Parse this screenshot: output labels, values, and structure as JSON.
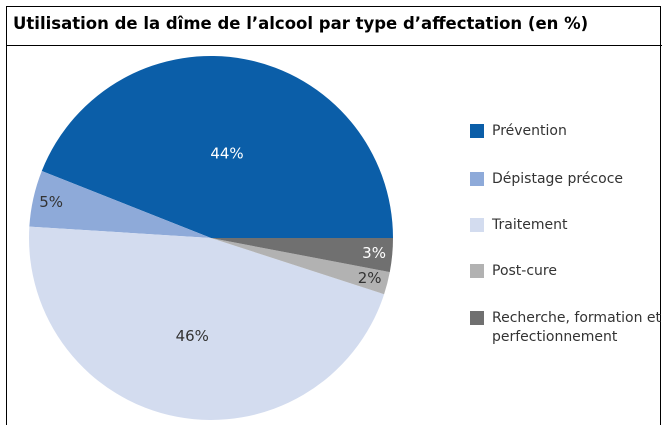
{
  "chart_data": {
    "type": "pie",
    "title": "Utilisation de la dîme de l’alcool par type d’affectation (en %)",
    "categories": [
      "Prévention",
      "Dépistage précoce",
      "Traitement",
      "Post-cure",
      "Recherche, formation et perfectionnement"
    ],
    "values": [
      44,
      5,
      46,
      2,
      3
    ],
    "value_labels": [
      "44%",
      "5%",
      "46%",
      "2%",
      "3%"
    ],
    "colors": [
      "#0b5ea8",
      "#8eaad9",
      "#d3dcef",
      "#b2b2b2",
      "#707070"
    ]
  }
}
